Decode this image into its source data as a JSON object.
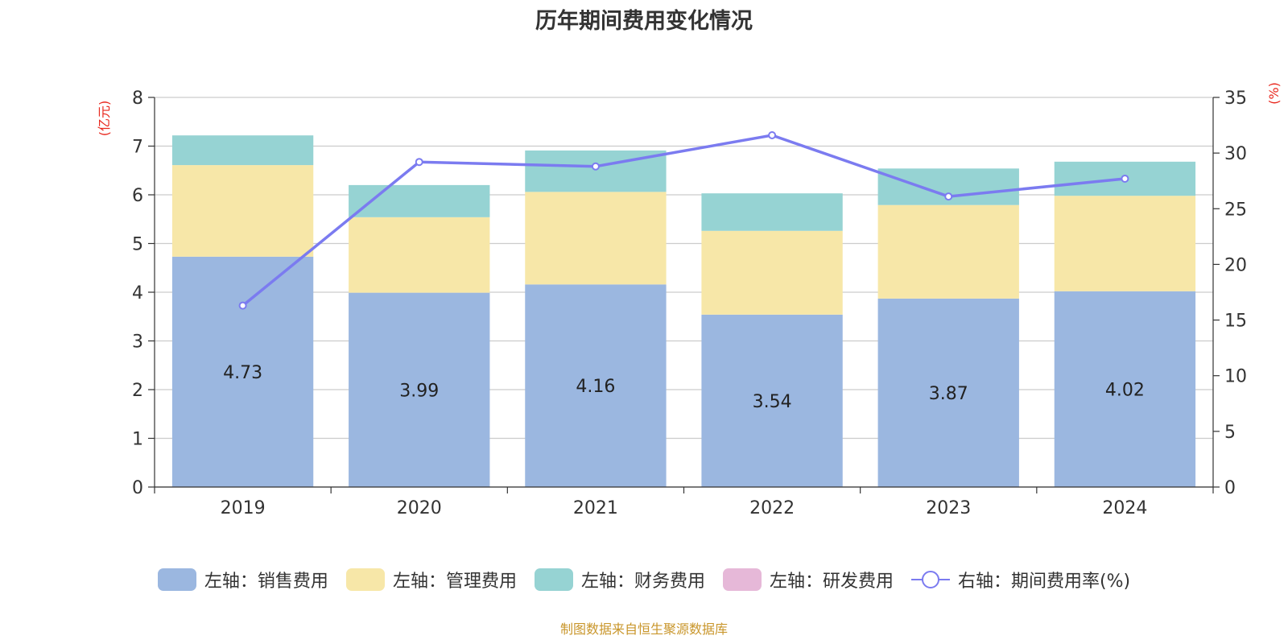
{
  "chart_data": {
    "type": "bar",
    "title": "历年期间费用变化情况",
    "categories": [
      "2019",
      "2020",
      "2021",
      "2022",
      "2023",
      "2024"
    ],
    "y_left": {
      "unit": "(亿元)",
      "range": [
        0,
        8
      ],
      "ticks": [
        "0",
        "1",
        "2",
        "3",
        "4",
        "5",
        "6",
        "7",
        "8"
      ]
    },
    "y_right": {
      "unit": "(%)",
      "range": [
        0,
        35
      ],
      "ticks": [
        "0",
        "5",
        "10",
        "15",
        "20",
        "25",
        "30",
        "35"
      ]
    },
    "grid": true,
    "legend_position": "bottom",
    "series": [
      {
        "name": "左轴：销售费用",
        "type": "bar",
        "axis": "left",
        "color": "#9bb7e0",
        "values": [
          4.73,
          3.99,
          4.16,
          3.54,
          3.87,
          4.02
        ],
        "labels": [
          "4.73",
          "3.99",
          "4.16",
          "3.54",
          "3.87",
          "4.02"
        ]
      },
      {
        "name": "左轴：管理费用",
        "type": "bar",
        "axis": "left",
        "color": "#f7e7a8",
        "values": [
          1.88,
          1.55,
          1.9,
          1.72,
          1.92,
          1.96
        ]
      },
      {
        "name": "左轴：财务费用",
        "type": "bar",
        "axis": "left",
        "color": "#96d3d3",
        "values": [
          0.61,
          0.66,
          0.85,
          0.77,
          0.75,
          0.7
        ]
      },
      {
        "name": "左轴：研发费用",
        "type": "bar",
        "axis": "left",
        "color": "#e6b8d8",
        "values": [
          0,
          0,
          0,
          0,
          0,
          0
        ]
      },
      {
        "name": "右轴：期间费用率(%)",
        "type": "line",
        "axis": "right",
        "color": "#7b7bf0",
        "values": [
          16.3,
          29.2,
          28.8,
          31.6,
          26.1,
          27.7
        ]
      }
    ]
  },
  "source": "制图数据来自恒生聚源数据库"
}
